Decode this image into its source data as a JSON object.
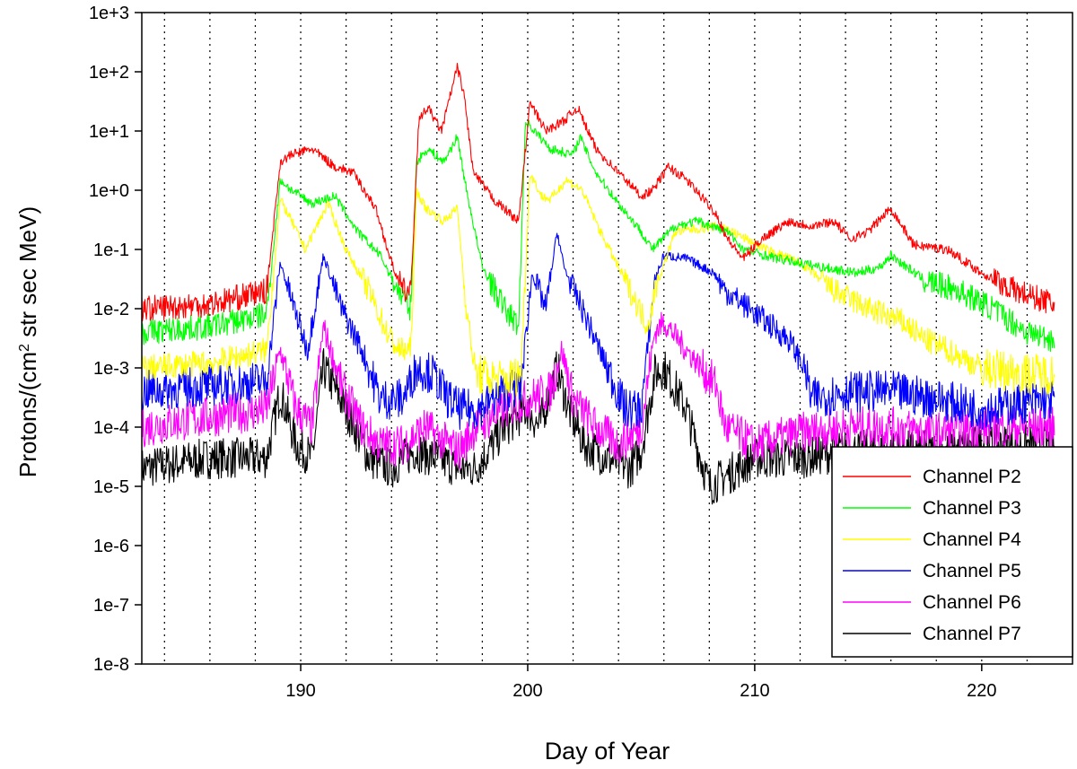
{
  "chart_data": {
    "type": "line",
    "title": "",
    "xlabel": "Day of Year",
    "ylabel": "Protons/(cm² str sec MeV)",
    "ylabel_parts": {
      "pre": "Protons/(cm",
      "sup": "2",
      "post": " str sec MeV)"
    },
    "xscale": "linear",
    "yscale": "log",
    "xlim": [
      183,
      224
    ],
    "ylim": [
      1e-08,
      1000
    ],
    "x_ticks": [
      190,
      200,
      210,
      220
    ],
    "x_tick_labels": [
      "190",
      "200",
      "210",
      "220"
    ],
    "y_ticks": [
      1000,
      100,
      10,
      1,
      0.1,
      0.01,
      0.001,
      0.0001,
      1e-05,
      1e-06,
      1e-07,
      1e-08
    ],
    "y_tick_labels": [
      "1e+3",
      "1e+2",
      "1e+1",
      "1e+0",
      "1e-1",
      "1e-2",
      "1e-3",
      "1e-4",
      "1e-5",
      "1e-6",
      "1e-7",
      "1e-8"
    ],
    "vertical_gridlines": "dotted, one per day (even days)",
    "grid_days": [
      184,
      186,
      188,
      190,
      192,
      194,
      196,
      198,
      200,
      202,
      204,
      206,
      208,
      210,
      212,
      214,
      216,
      218,
      220,
      222
    ],
    "legend_position": "lower-right",
    "series": [
      {
        "name": "Channel P2",
        "color": "#ff0000",
        "x": [
          183,
          186,
          188.5,
          189.1,
          189.6,
          190.5,
          191.5,
          192.3,
          193.3,
          194,
          194.5,
          194.85,
          195.2,
          195.6,
          196.2,
          196.9,
          197.2,
          197.6,
          198.5,
          199.6,
          200.1,
          200.8,
          201.6,
          202.2,
          203,
          204,
          205,
          205.5,
          206.2,
          207,
          208.3,
          208.8,
          209.5,
          210.3,
          211.5,
          212.5,
          213.5,
          214.2,
          215,
          216,
          217,
          218.5,
          220,
          221.5,
          223.2
        ],
        "y": [
          0.01,
          0.012,
          0.02,
          3,
          4,
          5,
          2.5,
          2,
          0.5,
          0.06,
          0.02,
          0.02,
          15,
          25,
          10,
          120,
          40,
          2,
          0.7,
          0.3,
          30,
          10,
          15,
          25,
          5,
          2,
          0.8,
          1,
          2.5,
          1.5,
          0.4,
          0.15,
          0.07,
          0.15,
          0.3,
          0.25,
          0.3,
          0.15,
          0.2,
          0.5,
          0.12,
          0.1,
          0.04,
          0.02,
          0.012
        ]
      },
      {
        "name": "Channel P3",
        "color": "#00ff00",
        "x": [
          183,
          186,
          188.5,
          189.1,
          189.6,
          190.5,
          191.5,
          192.5,
          193.5,
          194.3,
          194.85,
          195.1,
          195.6,
          196.3,
          196.9,
          197.3,
          198,
          199,
          199.6,
          199.9,
          200.3,
          201,
          202,
          202.3,
          203,
          204,
          205,
          205.5,
          206.5,
          207.5,
          208.8,
          209.5,
          211,
          213,
          214.5,
          215.5,
          216,
          217.5,
          219,
          220.5,
          222,
          223.2
        ],
        "y": [
          0.004,
          0.005,
          0.008,
          1.5,
          1,
          0.6,
          0.8,
          0.2,
          0.08,
          0.02,
          0.01,
          3,
          5,
          3,
          8,
          1,
          0.05,
          0.01,
          0.005,
          15,
          10,
          5,
          4,
          8,
          2,
          0.6,
          0.2,
          0.1,
          0.25,
          0.3,
          0.2,
          0.1,
          0.07,
          0.05,
          0.04,
          0.05,
          0.08,
          0.03,
          0.02,
          0.01,
          0.004,
          0.003
        ]
      },
      {
        "name": "Channel P4",
        "color": "#ffff00",
        "x": [
          183,
          186,
          188.5,
          189.1,
          189.6,
          190.2,
          191.2,
          192,
          193,
          193.8,
          194.3,
          194.85,
          195.1,
          195.5,
          196.3,
          196.9,
          197.3,
          197.7,
          199,
          199.7,
          200.1,
          200.6,
          201,
          201.7,
          202.4,
          203.2,
          204,
          205.3,
          205.6,
          206.5,
          208.5,
          209,
          210.5,
          212,
          213.5,
          215,
          216.5,
          217.5,
          218.5,
          220,
          222,
          223.2
        ],
        "y": [
          0.001,
          0.0012,
          0.002,
          0.7,
          0.3,
          0.1,
          0.6,
          0.1,
          0.02,
          0.004,
          0.002,
          0.002,
          1,
          0.5,
          0.3,
          0.5,
          0.01,
          0.0008,
          0.0006,
          0.0008,
          2,
          0.8,
          0.7,
          1.5,
          1,
          0.2,
          0.05,
          0.005,
          0.02,
          0.2,
          0.25,
          0.2,
          0.1,
          0.06,
          0.02,
          0.01,
          0.006,
          0.003,
          0.002,
          0.001,
          0.0008,
          0.0008
        ]
      },
      {
        "name": "Channel P5",
        "color": "#0000ff",
        "x": [
          183,
          186,
          188.5,
          189.1,
          189.8,
          190.3,
          191,
          191.8,
          192.7,
          193.5,
          194.5,
          195.1,
          195.8,
          196.5,
          197,
          197.7,
          199,
          199.7,
          200.2,
          200.8,
          201.3,
          201.6,
          202.5,
          203.5,
          204.3,
          205,
          205.6,
          206,
          207,
          208.2,
          208.7,
          209.5,
          210.5,
          211.5,
          212.2,
          212.5,
          214,
          216,
          218,
          220,
          223.2
        ],
        "y": [
          0.0004,
          0.0005,
          0.0006,
          0.06,
          0.008,
          0.002,
          0.08,
          0.01,
          0.002,
          0.0003,
          0.0003,
          0.001,
          0.0008,
          0.0003,
          0.0002,
          0.0002,
          0.0004,
          0.0005,
          0.04,
          0.01,
          0.2,
          0.05,
          0.008,
          0.001,
          0.0002,
          0.0002,
          0.03,
          0.08,
          0.07,
          0.04,
          0.02,
          0.012,
          0.006,
          0.003,
          0.001,
          0.0003,
          0.0004,
          0.0004,
          0.0003,
          0.0002,
          0.0003
        ]
      },
      {
        "name": "Channel P6",
        "color": "#ff00ff",
        "x": [
          183,
          186,
          188.5,
          189.1,
          189.8,
          190.5,
          191,
          191.8,
          192.7,
          193.5,
          194.5,
          195.5,
          196.5,
          197,
          197.7,
          199,
          200,
          201,
          201.5,
          202,
          203,
          204,
          205,
          205.6,
          206,
          207,
          208.3,
          208.7,
          210,
          212,
          214,
          216,
          218,
          220,
          223.2
        ],
        "y": [
          0.0001,
          0.00015,
          0.0002,
          0.002,
          0.0002,
          0.0001,
          0.005,
          0.0005,
          0.0001,
          5e-05,
          5e-05,
          0.0001,
          5e-05,
          4e-05,
          0.0001,
          0.0002,
          0.0003,
          0.0004,
          0.002,
          0.0003,
          0.0001,
          5e-05,
          0.0001,
          0.004,
          0.006,
          0.002,
          0.0005,
          0.0001,
          5e-05,
          8e-05,
          0.0001,
          0.0001,
          8e-05,
          0.0001,
          0.0001
        ]
      },
      {
        "name": "Channel P7",
        "color": "#000000",
        "x": [
          183,
          186,
          188.5,
          189.1,
          189.8,
          190.5,
          191,
          192,
          193,
          194,
          195,
          196,
          197,
          197.7,
          199,
          200,
          200.5,
          201.3,
          201.8,
          202.5,
          203.5,
          204.5,
          205,
          205.6,
          206,
          207,
          207.2,
          208,
          210,
          212,
          214,
          216,
          218,
          220,
          223.2
        ],
        "y": [
          2e-05,
          3e-05,
          3e-05,
          0.0004,
          5e-05,
          3e-05,
          0.001,
          0.0002,
          3e-05,
          2e-05,
          4e-05,
          3e-05,
          2e-05,
          2e-05,
          0.0001,
          0.0002,
          0.0001,
          0.001,
          0.0002,
          5e-05,
          3e-05,
          2e-05,
          4e-05,
          0.0008,
          0.001,
          0.0002,
          0.0001,
          1e-05,
          3e-05,
          3e-05,
          4e-05,
          4e-05,
          4e-05,
          5e-05,
          5e-05
        ]
      }
    ]
  }
}
